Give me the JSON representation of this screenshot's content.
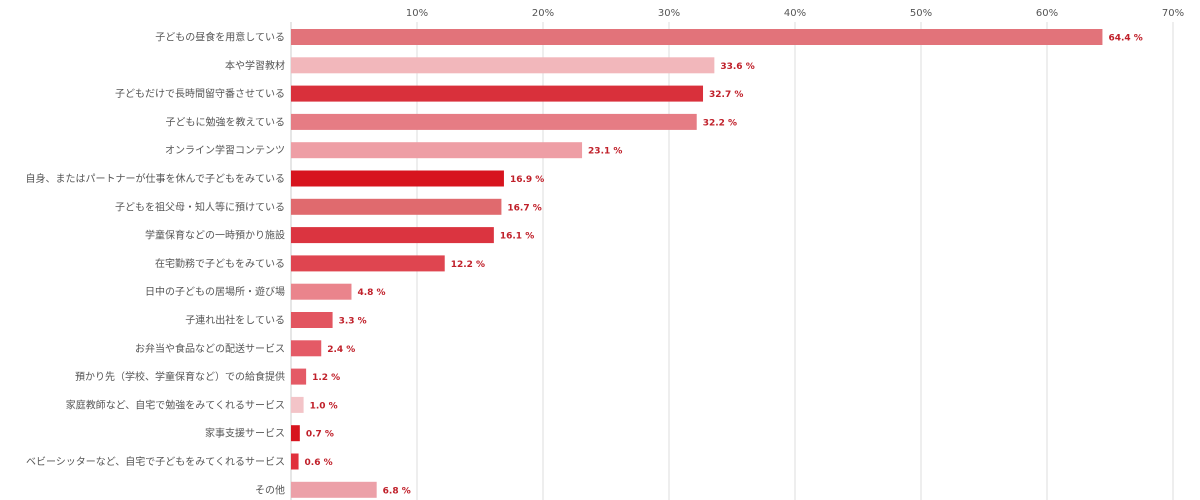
{
  "chart_data": {
    "type": "bar",
    "orientation": "horizontal",
    "title": "",
    "xlabel": "",
    "ylabel": "",
    "xlim": [
      0,
      70
    ],
    "ticks": [
      10,
      20,
      30,
      40,
      50,
      60,
      70
    ],
    "tick_labels": [
      "10%",
      "20%",
      "30%",
      "40%",
      "50%",
      "60%",
      "70%"
    ],
    "grid": true,
    "legend": "none",
    "categories": [
      "子どもの昼食を用意している",
      "本や学習教材",
      "子どもだけで長時間留守番させている",
      "子どもに勉強を教えている",
      "オンライン学習コンテンツ",
      "自身、またはパートナーが仕事を休んで子どもをみている",
      "子どもを祖父母・知人等に預けている",
      "学童保育などの一時預かり施設",
      "在宅勤務で子どもをみている",
      "日中の子どもの居場所・遊び場",
      "子連れ出社をしている",
      "お弁当や食品などの配送サービス",
      "預かり先（学校、学童保育など）での給食提供",
      "家庭教師など、自宅で勉強をみてくれるサービス",
      "家事支援サービス",
      "ベビーシッターなど、自宅で子どもをみてくれるサービス",
      "その他"
    ],
    "values": [
      64.4,
      33.6,
      32.7,
      32.2,
      23.1,
      16.9,
      16.7,
      16.1,
      12.2,
      4.8,
      3.3,
      2.4,
      1.2,
      1.0,
      0.7,
      0.6,
      6.8
    ],
    "value_labels": [
      "64.4 %",
      "33.6 %",
      "32.7 %",
      "32.2 %",
      "23.1 %",
      "16.9 %",
      "16.7 %",
      "16.1 %",
      "12.2 %",
      "4.8 %",
      "3.3 %",
      "2.4 %",
      "1.2 %",
      "1.0 %",
      "0.7 %",
      "0.6 %",
      "6.8 %"
    ],
    "colors": [
      "#e2737a",
      "#f2b7bb",
      "#d9303b",
      "#e67c84",
      "#ee9ea5",
      "#d7141e",
      "#e06a6e",
      "#db3440",
      "#df4550",
      "#ea848c",
      "#e25560",
      "#e45a66",
      "#e45a66",
      "#f3c4c8",
      "#d7141e",
      "#e0303c",
      "#eca0a8"
    ]
  }
}
